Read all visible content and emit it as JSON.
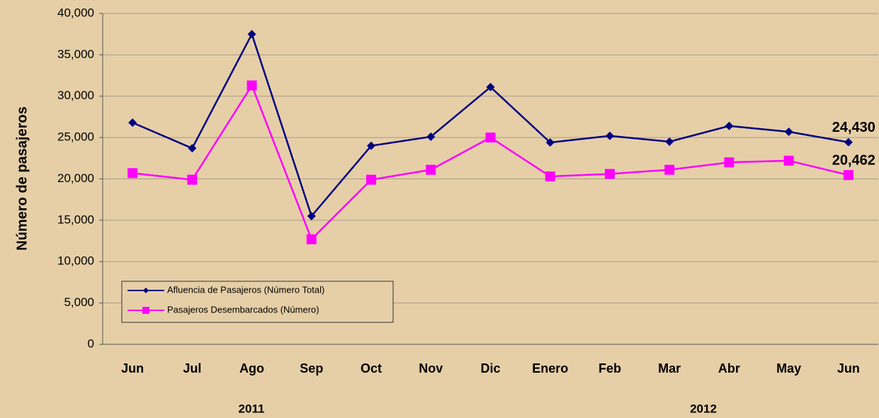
{
  "chart_data": {
    "type": "line",
    "y_label": "Número de pasajeros",
    "categories": [
      "Jun",
      "Jul",
      "Ago",
      "Sep",
      "Oct",
      "Nov",
      "Dic",
      "Enero",
      "Feb",
      "Mar",
      "Abr",
      "May",
      "Jun"
    ],
    "year_labels": [
      "2011",
      "2012"
    ],
    "series": [
      {
        "name": "Afluencia de Pasajeros (Número Total)",
        "color": "#000080",
        "marker": "diamond",
        "values": [
          26800,
          23700,
          37500,
          15500,
          24000,
          25100,
          31100,
          24400,
          25200,
          24500,
          26400,
          25700,
          24430
        ],
        "value_labels": [
          null,
          null,
          null,
          null,
          null,
          null,
          null,
          null,
          null,
          null,
          null,
          null,
          "24,430"
        ]
      },
      {
        "name": "Pasajeros Desembarcados (Número)",
        "color": "#ff00ff",
        "marker": "square",
        "values": [
          20700,
          19900,
          31300,
          12700,
          19900,
          21100,
          25000,
          20300,
          20600,
          21100,
          22000,
          22200,
          20462
        ],
        "value_labels": [
          null,
          null,
          null,
          null,
          null,
          null,
          null,
          null,
          null,
          null,
          null,
          null,
          "20,462"
        ]
      }
    ],
    "ylim": [
      0,
      40000
    ],
    "yticks": [
      0,
      {
        "value": 5000,
        "label": "5,000"
      },
      {
        "value": 10000,
        "label": "10,000"
      },
      {
        "value": 15000,
        "label": "15,000"
      },
      {
        "value": 20000,
        "label": "20,000"
      },
      {
        "value": 25000,
        "label": "25,000"
      },
      {
        "value": 30000,
        "label": "30,000"
      },
      {
        "value": 35000,
        "label": "35,000"
      },
      {
        "value": 40000,
        "label": "40,000"
      }
    ],
    "grid": true,
    "legend": "lower left"
  }
}
